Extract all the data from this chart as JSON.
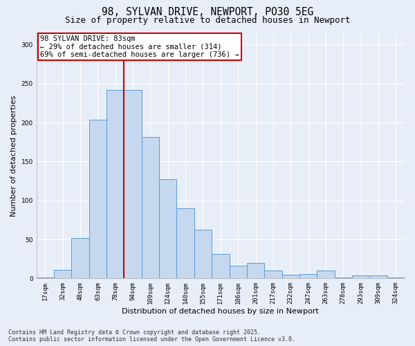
{
  "title_line1": "98, SYLVAN DRIVE, NEWPORT, PO30 5EG",
  "title_line2": "Size of property relative to detached houses in Newport",
  "xlabel": "Distribution of detached houses by size in Newport",
  "ylabel": "Number of detached properties",
  "categories": [
    "17sqm",
    "32sqm",
    "48sqm",
    "63sqm",
    "78sqm",
    "94sqm",
    "109sqm",
    "124sqm",
    "140sqm",
    "155sqm",
    "171sqm",
    "186sqm",
    "201sqm",
    "217sqm",
    "232sqm",
    "247sqm",
    "263sqm",
    "278sqm",
    "293sqm",
    "309sqm",
    "324sqm"
  ],
  "values": [
    1,
    11,
    52,
    204,
    242,
    242,
    181,
    127,
    90,
    62,
    31,
    16,
    20,
    10,
    5,
    6,
    10,
    1,
    4,
    4,
    1
  ],
  "bar_color": "#c5d8f0",
  "bar_edge_color": "#5b9bd5",
  "red_line_x": 5.0,
  "annotation_text": "98 SYLVAN DRIVE: 83sqm\n← 29% of detached houses are smaller (314)\n69% of semi-detached houses are larger (736) →",
  "annotation_box_color": "#ffffff",
  "annotation_box_edge": "#cc0000",
  "vline_color": "#cc0000",
  "ylim": [
    0,
    315
  ],
  "yticks": [
    0,
    50,
    100,
    150,
    200,
    250,
    300
  ],
  "background_color": "#e8eef8",
  "grid_color": "#ffffff",
  "footer_line1": "Contains HM Land Registry data © Crown copyright and database right 2025.",
  "footer_line2": "Contains public sector information licensed under the Open Government Licence v3.0.",
  "title_fontsize": 10.5,
  "subtitle_fontsize": 9,
  "tick_fontsize": 6.5,
  "label_fontsize": 8,
  "annotation_fontsize": 7.5,
  "footer_fontsize": 6,
  "ylabel_fontsize": 8
}
